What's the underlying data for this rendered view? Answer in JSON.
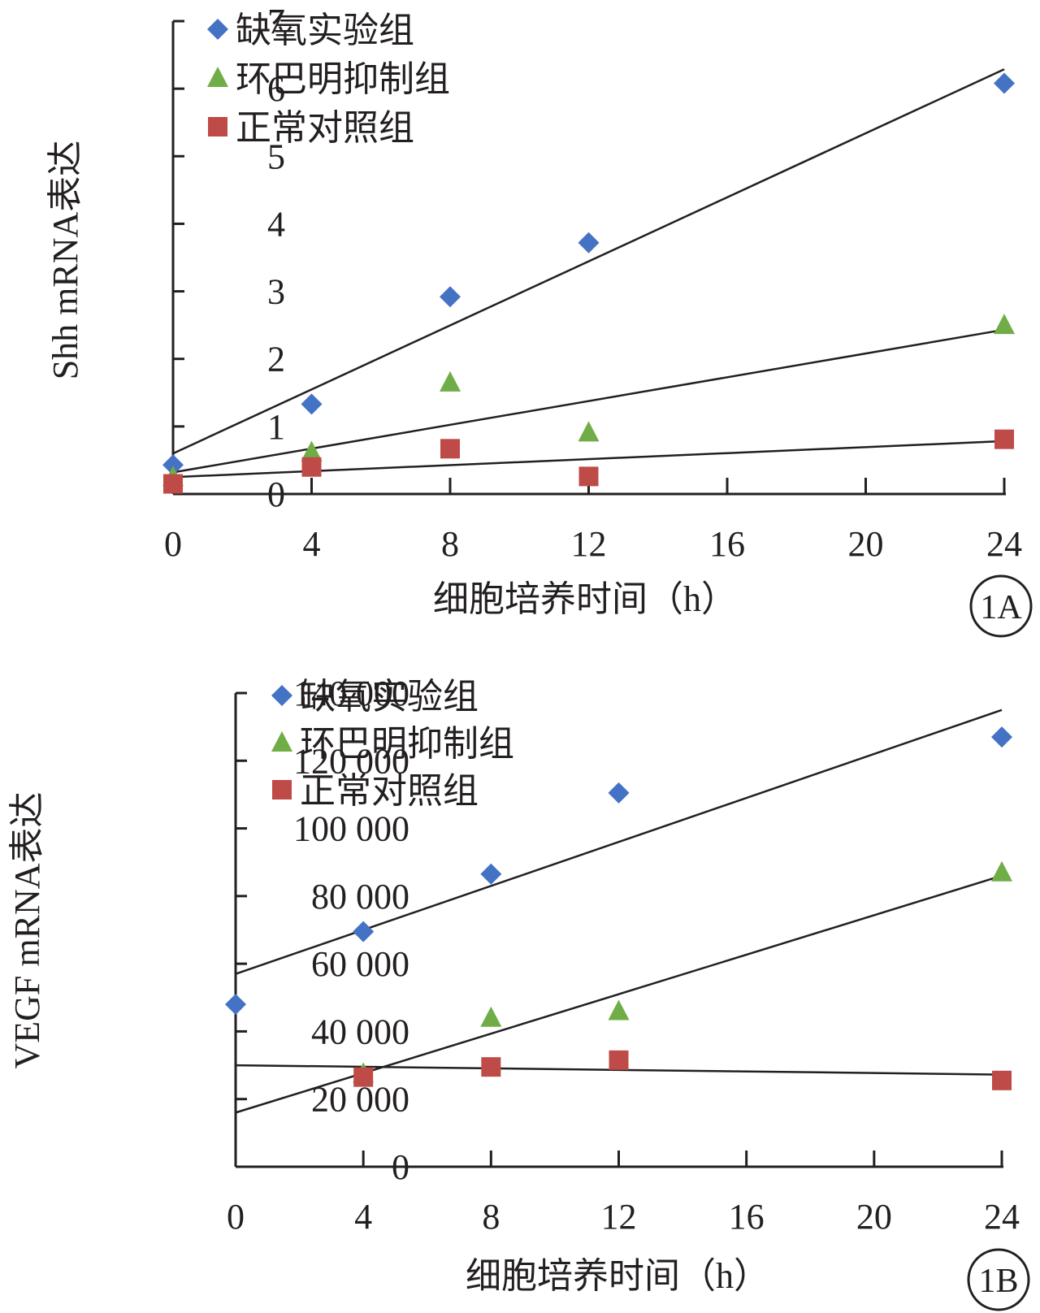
{
  "chart_data": [
    {
      "type": "scatter",
      "panel_label": "1A",
      "xlabel": "细胞培养时间（h）",
      "ylabel": "Shh mRNA表达",
      "xlim": [
        0,
        24
      ],
      "ylim": [
        0,
        7
      ],
      "xticks": [
        0,
        4,
        8,
        12,
        16,
        20,
        24
      ],
      "yticks": [
        0,
        1,
        2,
        3,
        4,
        5,
        6,
        7
      ],
      "xtick_labels": [
        "0",
        "4",
        "8",
        "12",
        "16",
        "20",
        "24"
      ],
      "ytick_labels": [
        "0",
        "1",
        "2",
        "3",
        "4",
        "5",
        "6",
        "7"
      ],
      "legend_position": "top-left",
      "trendlines": true,
      "series": [
        {
          "name": "缺氧实验组",
          "marker": "diamond",
          "color": "#4472c4",
          "x": [
            0,
            4,
            8,
            12,
            24
          ],
          "y": [
            0.43,
            1.33,
            2.92,
            3.72,
            6.08
          ],
          "trend": [
            0.6,
            0.237
          ]
        },
        {
          "name": "环巴明抑制组",
          "marker": "triangle",
          "color": "#70ad47",
          "x": [
            0,
            4,
            8,
            12,
            24
          ],
          "y": [
            0.25,
            0.62,
            1.65,
            0.91,
            2.5
          ],
          "trend": [
            0.32,
            0.088
          ]
        },
        {
          "name": "正常对照组",
          "marker": "square",
          "color": "#be4b48",
          "x": [
            0,
            4,
            8,
            12,
            24
          ],
          "y": [
            0.15,
            0.4,
            0.67,
            0.26,
            0.81
          ],
          "trend": [
            0.25,
            0.0222
          ]
        }
      ]
    },
    {
      "type": "scatter",
      "panel_label": "1B",
      "xlabel": "细胞培养时间（h）",
      "ylabel": "VEGF mRNA表达",
      "xlim": [
        0,
        24
      ],
      "ylim": [
        0,
        140000
      ],
      "xticks": [
        0,
        4,
        8,
        12,
        16,
        20,
        24
      ],
      "yticks": [
        0,
        20000,
        40000,
        60000,
        80000,
        100000,
        120000,
        140000
      ],
      "xtick_labels": [
        "0",
        "4",
        "8",
        "12",
        "16",
        "20",
        "24"
      ],
      "ytick_labels": [
        "0",
        "20 000",
        "40 000",
        "60 000",
        "80 000",
        "100 000",
        "120 000",
        "140 000"
      ],
      "legend_position": "top-left",
      "trendlines": true,
      "series": [
        {
          "name": "缺氧实验组",
          "marker": "diamond",
          "color": "#4472c4",
          "x": [
            0,
            4,
            8,
            12,
            24
          ],
          "y": [
            48000,
            69500,
            86500,
            110500,
            127000
          ],
          "trend": [
            57000,
            3250
          ]
        },
        {
          "name": "环巴明抑制组",
          "marker": "triangle",
          "color": "#70ad47",
          "x": [
            4,
            8,
            24
          ],
          "y": [
            27500,
            44000,
            87000
          ],
          "trend": [
            16000,
            2917
          ]
        },
        {
          "name": "环巴明抑制组",
          "marker": "triangle",
          "color": "#70ad47",
          "x": [
            12
          ],
          "y": [
            46000
          ],
          "trend": null
        },
        {
          "name": "正常对照组",
          "marker": "square",
          "color": "#be4b48",
          "x": [
            4,
            8,
            12,
            24
          ],
          "y": [
            26500,
            29500,
            31500,
            25500
          ],
          "trend": [
            30000,
            -115
          ]
        }
      ]
    }
  ]
}
